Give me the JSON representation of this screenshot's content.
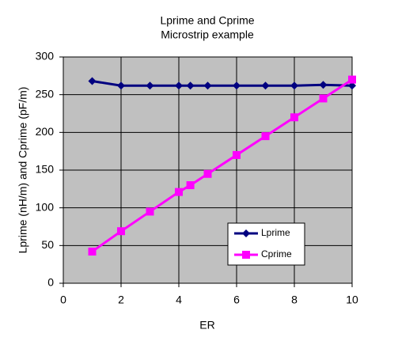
{
  "chart_data": {
    "type": "line",
    "title": "Lprime and Cprime",
    "subtitle": "Microstrip example",
    "x_label": "ER",
    "y_label": "Lprime (nH/m) and Cprime (pF/m)",
    "x": [
      1,
      2,
      3,
      4,
      4.4,
      5,
      6,
      7,
      8,
      9,
      10
    ],
    "series": [
      {
        "name": "Lprime",
        "color": "#000080",
        "marker": "diamond",
        "values": [
          268,
          262,
          262,
          262,
          262,
          262,
          262,
          262,
          262,
          263,
          262
        ]
      },
      {
        "name": "Cprime",
        "color": "#ff00ff",
        "marker": "square",
        "values": [
          42,
          69,
          95,
          121,
          130,
          145,
          170,
          195,
          220,
          245,
          270
        ]
      }
    ],
    "xlim": [
      0,
      10
    ],
    "xticks": [
      0,
      2,
      4,
      6,
      8,
      10
    ],
    "ylim": [
      0,
      300
    ],
    "yticks": [
      0,
      50,
      100,
      150,
      200,
      250,
      300
    ],
    "grid": true,
    "legend_position": "lower right"
  }
}
